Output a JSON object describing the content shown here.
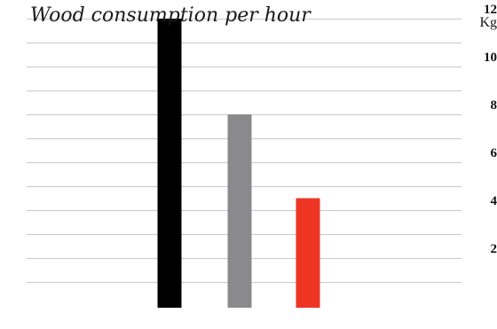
{
  "chart_data": {
    "type": "bar",
    "title": "Wood consumption per hour",
    "ylabel": "Kg",
    "xlabel": "",
    "categories": [
      "",
      "",
      ""
    ],
    "values": [
      12,
      8,
      4.5
    ],
    "colors": [
      "#000000",
      "#8a8a8d",
      "#ee3524"
    ],
    "ylim": [
      0,
      12.5
    ],
    "y_ticks": [
      2,
      4,
      6,
      8,
      10,
      12
    ],
    "y_ticks_labeled": [
      "2",
      "4",
      "6",
      "8",
      "10",
      "12"
    ],
    "grid": true,
    "gridline_step": 1,
    "axis_position": "right"
  }
}
